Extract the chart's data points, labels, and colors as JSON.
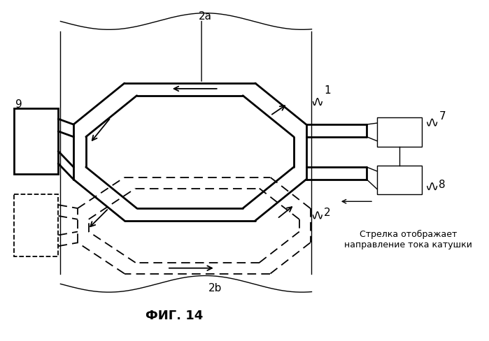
{
  "title": "ФИГ. 14",
  "title_fontsize": 13,
  "bg_color": "#ffffff",
  "line_color": "#000000",
  "fig_width": 6.99,
  "fig_height": 4.89,
  "dpi": 100,
  "annotation_text": "Стрелка отображает\nнаправление тока катушки"
}
